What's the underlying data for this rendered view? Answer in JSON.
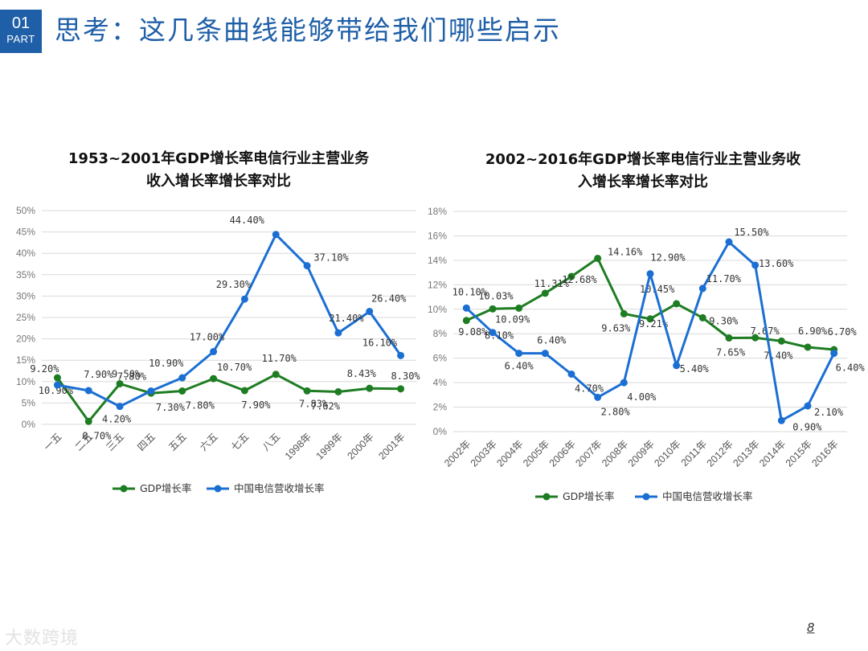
{
  "header": {
    "badge_number": "01",
    "badge_label": "PART",
    "title": "思考：这几条曲线能够带给我们哪些启示"
  },
  "footer": {
    "page_number": "8",
    "watermark": "大数跨境"
  },
  "colors": {
    "accent": "#1f5fa8",
    "gdp": "#1e7d22",
    "telecom": "#1b6fd3",
    "grid": "#d9d9d9"
  },
  "chart_data": [
    {
      "type": "line",
      "title_lines": [
        "1953~2001年GDP增长率电信行业主营业务",
        "收入增长率增长率对比"
      ],
      "categories": [
        "一五",
        "二五",
        "三五",
        "四五",
        "五五",
        "六五",
        "七五",
        "八五",
        "1998年",
        "1999年",
        "2000年",
        "2001年"
      ],
      "y_ticks": [
        "0%",
        "5%",
        "10%",
        "15%",
        "20%",
        "25%",
        "30%",
        "35%",
        "40%",
        "45%",
        "50%"
      ],
      "ylim": [
        0,
        50
      ],
      "grid": true,
      "legend_position": "bottom",
      "series": [
        {
          "name": "GDP增长率",
          "values": [
            10.9,
            0.7,
            9.5,
            7.3,
            7.8,
            10.7,
            7.9,
            11.7,
            7.83,
            7.62,
            8.43,
            8.3
          ],
          "labels": [
            "10.90%",
            "0.70%",
            "9.50%",
            "7.30%",
            "7.80%",
            "10.70%",
            "7.90%",
            "11.70%",
            "7.83%",
            "7.62%",
            "8.43%",
            "8.30%"
          ]
        },
        {
          "name": "中国电信营收增长率",
          "values": [
            9.2,
            7.9,
            4.2,
            7.8,
            10.9,
            17.0,
            29.3,
            44.4,
            37.1,
            21.4,
            26.4,
            16.1
          ],
          "labels": [
            "9.20%",
            "7.90%",
            "4.20%",
            "7.80%",
            "10.90%",
            "17.00%",
            "29.30%",
            "44.40%",
            "37.10%",
            "21.40%",
            "26.40%",
            "16.10%"
          ]
        }
      ]
    },
    {
      "type": "line",
      "title_lines": [
        "2002~2016年GDP增长率电信行业主营业务收",
        "入增长率增长率对比"
      ],
      "categories": [
        "2002年",
        "2003年",
        "2004年",
        "2005年",
        "2006年",
        "2007年",
        "2008年",
        "2009年",
        "2010年",
        "2011年",
        "2012年",
        "2013年",
        "2014年",
        "2015年",
        "2016年"
      ],
      "y_ticks": [
        "0%",
        "2%",
        "4%",
        "6%",
        "8%",
        "10%",
        "12%",
        "14%",
        "16%",
        "18%"
      ],
      "ylim": [
        0,
        18
      ],
      "grid": true,
      "legend_position": "bottom",
      "series": [
        {
          "name": "GDP增长率",
          "values": [
            9.08,
            10.03,
            10.09,
            11.31,
            12.68,
            14.16,
            9.63,
            9.21,
            10.45,
            9.3,
            7.65,
            7.67,
            7.4,
            6.9,
            6.7
          ],
          "labels": [
            "9.08%",
            "10.03%",
            "10.09%",
            "11.31%",
            "12.68%",
            "14.16%",
            "9.63%",
            "9.21%",
            "10.45%",
            "9.30%",
            "7.65%",
            "7.67%",
            "7.40%",
            "6.90%",
            "6.70%"
          ]
        },
        {
          "name": "中国电信营收增长率",
          "values": [
            10.1,
            8.1,
            6.4,
            6.4,
            4.7,
            2.8,
            4.0,
            12.9,
            5.4,
            11.7,
            15.5,
            13.6,
            0.9,
            2.1,
            6.4
          ],
          "labels": [
            "10.10%",
            "8.10%",
            "6.40%",
            "6.40%",
            "4.70%",
            "2.80%",
            "4.00%",
            "12.90%",
            "5.40%",
            "11.70%",
            "15.50%",
            "13.60%",
            "0.90%",
            "2.10%",
            "6.40%"
          ]
        }
      ]
    }
  ]
}
